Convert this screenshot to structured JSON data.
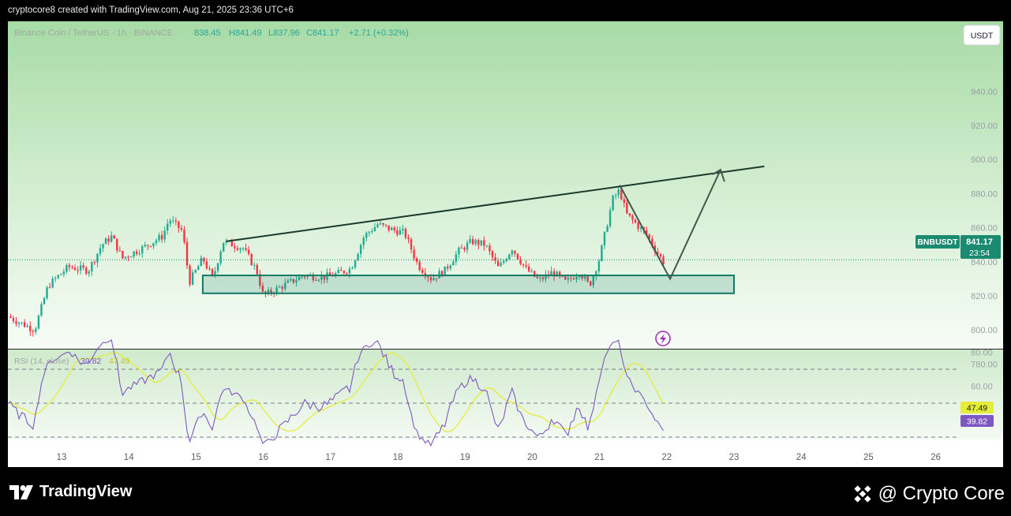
{
  "header": {
    "text": "cryptocore8 created with TradingView.com, Aug 21, 2025 23:36 UTC+6"
  },
  "legend": {
    "symbol": "Binance Coin / TetherUS · 1h · BINANCE",
    "open": "838.45",
    "high": "H841.49",
    "low": "L837.96",
    "close": "C841.17",
    "change": "+2.71 (+0.32%)"
  },
  "currency_button": "USDT",
  "price_tag": {
    "symbol": "BNBUSDT",
    "price": "841.17",
    "countdown": "23:54"
  },
  "rsi": {
    "title": "RSI (14, close)",
    "value": "39.82",
    "ma_value": "47.49",
    "rsi_color": "#7e57c2",
    "ma_color": "#e5ed3a"
  },
  "footer": {
    "brand": "TradingView",
    "watermark": "@ Crypto Core"
  },
  "colors": {
    "up": "#22ab94",
    "down": "#f23645",
    "zone": "#117a65"
  },
  "chart_data": {
    "type": "candlestick",
    "symbol": "BNBUSDT",
    "interval": "1h",
    "y_ticks": [
      780,
      800,
      820,
      840,
      860,
      880,
      900,
      920,
      940
    ],
    "x_ticks": [
      "13",
      "14",
      "15",
      "16",
      "17",
      "18",
      "19",
      "20",
      "21",
      "22",
      "23",
      "24",
      "25",
      "26"
    ],
    "price_path": [
      {
        "day": 12.2,
        "price": 808
      },
      {
        "day": 12.6,
        "price": 800
      },
      {
        "day": 12.8,
        "price": 826
      },
      {
        "day": 13.1,
        "price": 837
      },
      {
        "day": 13.4,
        "price": 835
      },
      {
        "day": 13.6,
        "price": 850
      },
      {
        "day": 13.75,
        "price": 855
      },
      {
        "day": 13.9,
        "price": 842
      },
      {
        "day": 14.2,
        "price": 848
      },
      {
        "day": 14.5,
        "price": 855
      },
      {
        "day": 14.6,
        "price": 865
      },
      {
        "day": 14.8,
        "price": 858
      },
      {
        "day": 14.9,
        "price": 828
      },
      {
        "day": 15.1,
        "price": 842
      },
      {
        "day": 15.25,
        "price": 830
      },
      {
        "day": 15.4,
        "price": 852
      },
      {
        "day": 15.7,
        "price": 848
      },
      {
        "day": 15.9,
        "price": 835
      },
      {
        "day": 16.0,
        "price": 820
      },
      {
        "day": 16.3,
        "price": 826
      },
      {
        "day": 16.6,
        "price": 832
      },
      {
        "day": 16.9,
        "price": 831
      },
      {
        "day": 17.1,
        "price": 833
      },
      {
        "day": 17.3,
        "price": 836
      },
      {
        "day": 17.5,
        "price": 855
      },
      {
        "day": 17.7,
        "price": 862
      },
      {
        "day": 17.9,
        "price": 859
      },
      {
        "day": 18.1,
        "price": 857
      },
      {
        "day": 18.3,
        "price": 838
      },
      {
        "day": 18.5,
        "price": 830
      },
      {
        "day": 18.7,
        "price": 835
      },
      {
        "day": 18.9,
        "price": 846
      },
      {
        "day": 19.1,
        "price": 852
      },
      {
        "day": 19.3,
        "price": 850
      },
      {
        "day": 19.5,
        "price": 836
      },
      {
        "day": 19.7,
        "price": 848
      },
      {
        "day": 19.9,
        "price": 836
      },
      {
        "day": 20.1,
        "price": 829
      },
      {
        "day": 20.3,
        "price": 834
      },
      {
        "day": 20.5,
        "price": 828
      },
      {
        "day": 20.7,
        "price": 834
      },
      {
        "day": 20.85,
        "price": 826
      },
      {
        "day": 21.0,
        "price": 842
      },
      {
        "day": 21.1,
        "price": 860
      },
      {
        "day": 21.2,
        "price": 877
      },
      {
        "day": 21.3,
        "price": 882
      },
      {
        "day": 21.4,
        "price": 868
      },
      {
        "day": 21.55,
        "price": 862
      },
      {
        "day": 21.7,
        "price": 856
      },
      {
        "day": 21.85,
        "price": 846
      },
      {
        "day": 21.95,
        "price": 840
      },
      {
        "day": 21.98,
        "price": 841.17
      }
    ],
    "last_price": 841.17,
    "annotations": {
      "resistance_line": [
        {
          "day": 15.45,
          "price": 852
        },
        {
          "day": 23.45,
          "price": 896
        }
      ],
      "support_zone": {
        "from_day": 15.1,
        "to_day": 23.0,
        "low": 821.5,
        "high": 832
      },
      "projection": [
        {
          "day": 21.3,
          "price": 885
        },
        {
          "day": 22.05,
          "price": 830
        },
        {
          "day": 22.8,
          "price": 894
        }
      ]
    },
    "rsi": {
      "levels": [
        30,
        50,
        70
      ],
      "y_ticks": [
        60,
        80
      ],
      "last": 39.82,
      "ma_last": 47.49
    }
  }
}
